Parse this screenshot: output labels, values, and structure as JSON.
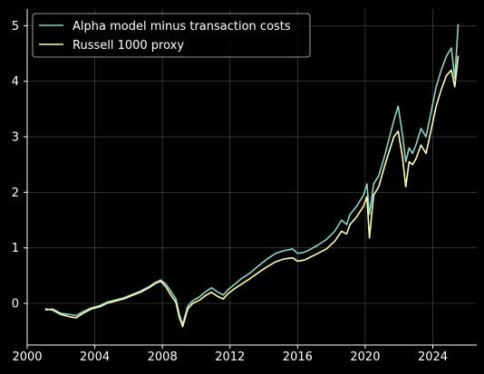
{
  "chart_data": {
    "type": "line",
    "title": "",
    "xlabel": "",
    "ylabel": "",
    "xlim": [
      2000.0,
      2026.6
    ],
    "ylim": [
      -0.75,
      5.3
    ],
    "x_ticks": [
      2000,
      2004,
      2008,
      2012,
      2016,
      2020,
      2024
    ],
    "x_tick_labels": [
      "2000",
      "2004",
      "2008",
      "2012",
      "2016",
      "2020",
      "2024"
    ],
    "y_ticks": [
      0,
      1,
      2,
      3,
      4,
      5
    ],
    "y_tick_labels": [
      "0",
      "1",
      "2",
      "3",
      "4",
      "5"
    ],
    "grid": true,
    "legend_position": "top-left",
    "series": [
      {
        "name": "Alpha model minus transaction costs",
        "color": "#8dd3c7",
        "x": [
          2001.1,
          2001.5,
          2002.0,
          2002.5,
          2002.9,
          2003.3,
          2003.8,
          2004.3,
          2004.7,
          2005.2,
          2005.7,
          2006.2,
          2006.7,
          2007.2,
          2007.6,
          2007.9,
          2008.2,
          2008.5,
          2008.8,
          2009.0,
          2009.2,
          2009.5,
          2009.8,
          2010.2,
          2010.6,
          2010.9,
          2011.3,
          2011.6,
          2011.9,
          2012.3,
          2012.7,
          2013.2,
          2013.7,
          2014.2,
          2014.7,
          2015.2,
          2015.7,
          2016.0,
          2016.4,
          2016.8,
          2017.2,
          2017.7,
          2018.2,
          2018.6,
          2018.9,
          2019.1,
          2019.5,
          2019.9,
          2020.1,
          2020.25,
          2020.5,
          2020.8,
          2021.1,
          2021.4,
          2021.7,
          2021.95,
          2022.2,
          2022.4,
          2022.6,
          2022.8,
          2023.0,
          2023.3,
          2023.6,
          2023.9,
          2024.2,
          2024.5,
          2024.8,
          2025.1,
          2025.3,
          2025.5
        ],
        "values": [
          -0.12,
          -0.1,
          -0.18,
          -0.2,
          -0.22,
          -0.15,
          -0.08,
          -0.04,
          0.02,
          0.06,
          0.1,
          0.16,
          0.22,
          0.3,
          0.38,
          0.42,
          0.35,
          0.22,
          0.08,
          -0.2,
          -0.38,
          -0.05,
          0.05,
          0.12,
          0.22,
          0.28,
          0.2,
          0.15,
          0.25,
          0.35,
          0.45,
          0.55,
          0.68,
          0.8,
          0.9,
          0.95,
          0.98,
          0.9,
          0.92,
          0.98,
          1.05,
          1.15,
          1.3,
          1.5,
          1.42,
          1.6,
          1.75,
          1.95,
          2.15,
          1.6,
          2.15,
          2.3,
          2.6,
          2.95,
          3.3,
          3.55,
          3.05,
          2.55,
          2.8,
          2.7,
          2.85,
          3.15,
          3.0,
          3.45,
          3.9,
          4.2,
          4.45,
          4.6,
          4.05,
          5.02
        ]
      },
      {
        "name": "Russell 1000 proxy",
        "color": "#ffffb3",
        "x": [
          2001.1,
          2001.5,
          2002.0,
          2002.5,
          2002.9,
          2003.3,
          2003.8,
          2004.3,
          2004.7,
          2005.2,
          2005.7,
          2006.2,
          2006.7,
          2007.2,
          2007.6,
          2007.9,
          2008.2,
          2008.5,
          2008.8,
          2009.0,
          2009.2,
          2009.5,
          2009.8,
          2010.2,
          2010.6,
          2010.9,
          2011.3,
          2011.6,
          2011.9,
          2012.3,
          2012.7,
          2013.2,
          2013.7,
          2014.2,
          2014.7,
          2015.2,
          2015.7,
          2016.0,
          2016.4,
          2016.8,
          2017.2,
          2017.7,
          2018.2,
          2018.6,
          2018.9,
          2019.1,
          2019.5,
          2019.9,
          2020.1,
          2020.25,
          2020.5,
          2020.8,
          2021.1,
          2021.4,
          2021.7,
          2021.95,
          2022.2,
          2022.4,
          2022.6,
          2022.8,
          2023.0,
          2023.3,
          2023.6,
          2023.9,
          2024.2,
          2024.5,
          2024.8,
          2025.1,
          2025.3,
          2025.5
        ],
        "values": [
          -0.1,
          -0.12,
          -0.2,
          -0.24,
          -0.26,
          -0.18,
          -0.1,
          -0.06,
          0.0,
          0.04,
          0.08,
          0.14,
          0.2,
          0.28,
          0.36,
          0.4,
          0.3,
          0.15,
          0.02,
          -0.25,
          -0.42,
          -0.1,
          0.0,
          0.06,
          0.15,
          0.2,
          0.12,
          0.08,
          0.18,
          0.27,
          0.35,
          0.45,
          0.56,
          0.66,
          0.75,
          0.8,
          0.82,
          0.76,
          0.78,
          0.84,
          0.9,
          0.98,
          1.12,
          1.3,
          1.25,
          1.42,
          1.56,
          1.75,
          1.92,
          1.18,
          1.95,
          2.1,
          2.42,
          2.72,
          3.0,
          3.1,
          2.65,
          2.1,
          2.55,
          2.5,
          2.6,
          2.85,
          2.7,
          3.12,
          3.55,
          3.85,
          4.1,
          4.2,
          3.9,
          4.45
        ]
      }
    ]
  }
}
